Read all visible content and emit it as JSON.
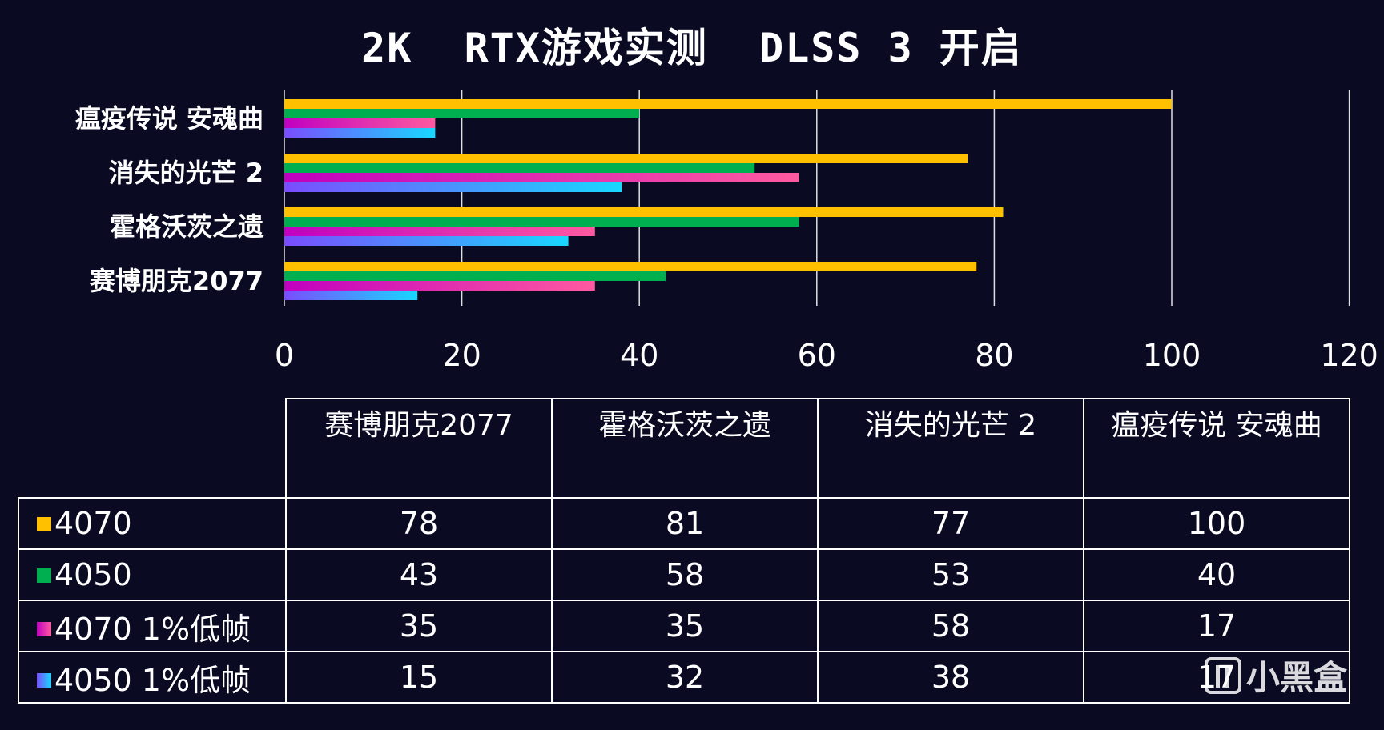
{
  "chart_data": {
    "type": "bar",
    "orientation": "horizontal",
    "title": "2K  RTX游戏实测  DLSS 3 开启",
    "categories": [
      "瘟疫传说 安魂曲",
      "消失的光芒 2",
      "霍格沃茨之遗",
      "赛博朋克2077"
    ],
    "series": [
      {
        "name": "4070",
        "values": [
          100,
          77,
          81,
          78
        ],
        "color": "#ffc000"
      },
      {
        "name": "4050",
        "values": [
          40,
          53,
          58,
          43
        ],
        "color": "#00b050"
      },
      {
        "name": "4070 1%低帧",
        "values": [
          17,
          58,
          35,
          35
        ],
        "color_start": "#c000c0",
        "color_end": "#ff5aa0"
      },
      {
        "name": "4050 1%低帧",
        "values": [
          17,
          38,
          32,
          15
        ],
        "color_start": "#7a4dff",
        "color_end": "#18d8ff"
      }
    ],
    "xlim": [
      0,
      120
    ],
    "xticks": [
      "0",
      "20",
      "40",
      "60",
      "80",
      "100",
      "120"
    ],
    "grid": true,
    "legend": "data-table below chart"
  },
  "table": {
    "headers": [
      "赛博朋克2077",
      "霍格沃茨之遗",
      "消失的光芒 2",
      "瘟疫传说 安魂曲"
    ],
    "rows": [
      {
        "series": "4070",
        "cells": [
          "78",
          "81",
          "77",
          "100"
        ],
        "color": "#ffc000"
      },
      {
        "series": "4050",
        "cells": [
          "43",
          "58",
          "53",
          "40"
        ],
        "color": "#00b050"
      },
      {
        "series": "4070 1%低帧",
        "cells": [
          "35",
          "35",
          "58",
          "17"
        ],
        "color_start": "#c000c0",
        "color_end": "#ff5aa0"
      },
      {
        "series": "4050 1%低帧",
        "cells": [
          "15",
          "32",
          "38",
          "17"
        ],
        "color_start": "#7a4dff",
        "color_end": "#18d8ff"
      }
    ]
  },
  "watermark": {
    "text": "小黑盒",
    "icon": "xiaoheihe-logo-icon"
  }
}
